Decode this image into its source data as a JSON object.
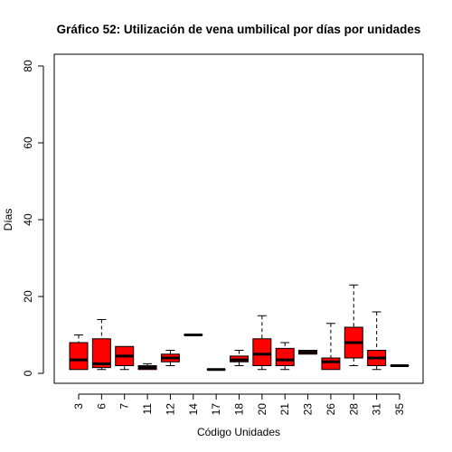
{
  "chart_data": {
    "type": "boxplot",
    "title": "Gráfico 52: Utilización de vena umbilical por días por unidades",
    "xlabel": "Código Unidades",
    "ylabel": "Días",
    "ylim": [
      0,
      80
    ],
    "yticks": [
      0,
      20,
      40,
      60,
      80
    ],
    "box_color": "#ff0000",
    "categories": [
      "3",
      "6",
      "7",
      "11",
      "12",
      "14",
      "17",
      "18",
      "20",
      "21",
      "23",
      "26",
      "28",
      "31",
      "35"
    ],
    "boxes": [
      {
        "whisker_low": 1,
        "q1": 1,
        "median": 3.5,
        "q3": 8,
        "whisker_high": 10
      },
      {
        "whisker_low": 1,
        "q1": 1.5,
        "median": 2.5,
        "q3": 9,
        "whisker_high": 14
      },
      {
        "whisker_low": 1,
        "q1": 2,
        "median": 4.5,
        "q3": 7,
        "whisker_high": 7
      },
      {
        "whisker_low": 1,
        "q1": 1,
        "median": 1.5,
        "q3": 2,
        "whisker_high": 2.5
      },
      {
        "whisker_low": 2,
        "q1": 3,
        "median": 4,
        "q3": 5,
        "whisker_high": 6
      },
      {
        "whisker_low": 10,
        "q1": 10,
        "median": 10,
        "q3": 10,
        "whisker_high": 10
      },
      {
        "whisker_low": 1,
        "q1": 1,
        "median": 1,
        "q3": 1,
        "whisker_high": 1
      },
      {
        "whisker_low": 2,
        "q1": 3,
        "median": 3.5,
        "q3": 4.5,
        "whisker_high": 6
      },
      {
        "whisker_low": 1,
        "q1": 2,
        "median": 5,
        "q3": 9,
        "whisker_high": 15
      },
      {
        "whisker_low": 1,
        "q1": 2,
        "median": 3.5,
        "q3": 6.5,
        "whisker_high": 8
      },
      {
        "whisker_low": 5,
        "q1": 5,
        "median": 5.5,
        "q3": 6,
        "whisker_high": 6
      },
      {
        "whisker_low": 1,
        "q1": 1,
        "median": 3,
        "q3": 4,
        "whisker_high": 13
      },
      {
        "whisker_low": 2,
        "q1": 4,
        "median": 8,
        "q3": 12,
        "whisker_high": 23
      },
      {
        "whisker_low": 1,
        "q1": 2,
        "median": 4,
        "q3": 6,
        "whisker_high": 16
      },
      {
        "whisker_low": 2,
        "q1": 2,
        "median": 2,
        "q3": 2,
        "whisker_high": 2
      }
    ]
  }
}
